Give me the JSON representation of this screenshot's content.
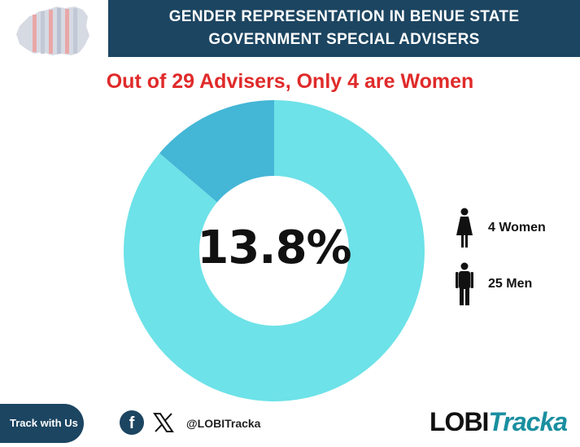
{
  "header": {
    "title_line1": "GENDER REPRESENTATION IN BENUE STATE",
    "title_line2": "GOVERNMENT SPECIAL ADVISERS",
    "map_icon": "benue-map-icon"
  },
  "subtitle": "Out of 29 Advisers, Only 4 are Women",
  "colors": {
    "banner": "#1c4561",
    "subtitle": "#e02a2a",
    "women_slice": "#44b6d6",
    "men_slice": "#6de2e8",
    "brand_dark": "#111111",
    "brand_red": "#e02a2a",
    "brand_teal": "#1a8fa0"
  },
  "chart_data": {
    "type": "pie",
    "title": "Out of 29 Advisers, Only 4 are Women",
    "total": 29,
    "categories": [
      "Women",
      "Men"
    ],
    "values": [
      4,
      25
    ],
    "center_label": "13.8%",
    "legend": [
      {
        "label": "4 Women",
        "icon": "woman-icon"
      },
      {
        "label": "25 Men",
        "icon": "man-icon"
      }
    ]
  },
  "footer": {
    "track_label": "Track with Us",
    "facebook_icon": "facebook-icon",
    "x_icon": "x-icon",
    "handle": "@LOBITracka",
    "brand_part1": "LOBI",
    "brand_part2": "Tracka"
  }
}
